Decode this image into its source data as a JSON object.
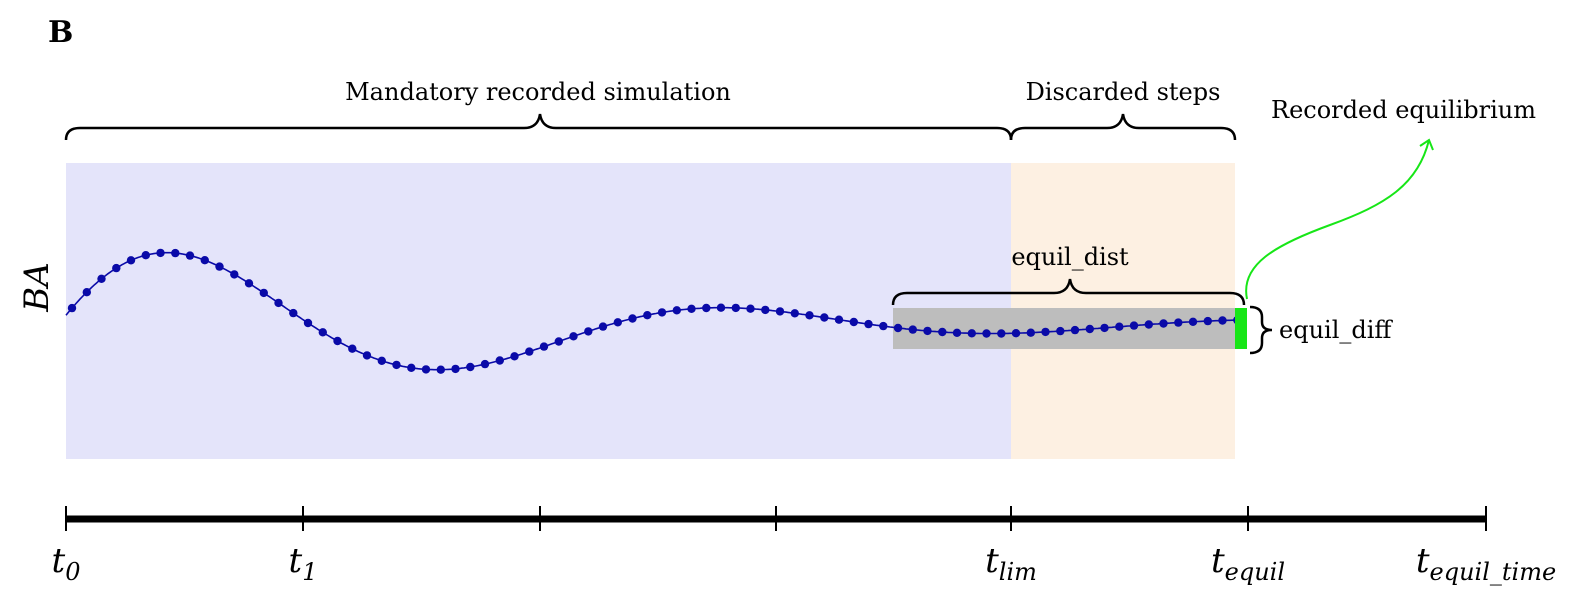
{
  "panel_label": "B",
  "y_axis_label": "BA",
  "regions": {
    "recorded_label": "Mandatory recorded simulation",
    "discarded_label": "Discarded steps",
    "equilibrium_label": "Recorded equilibrium"
  },
  "annotations": {
    "equil_dist": "equil_dist",
    "equil_diff": "equil_diff"
  },
  "time_axis": {
    "ticks": [
      {
        "base": "t",
        "sub": "0"
      },
      {
        "base": "t",
        "sub": "1"
      },
      {
        "base": "",
        "sub": ""
      },
      {
        "base": "",
        "sub": ""
      },
      {
        "base": "t",
        "sub": "lim"
      },
      {
        "base": "t",
        "sub": "equil"
      },
      {
        "base": "t",
        "sub": "equil_time"
      }
    ]
  },
  "colors": {
    "recorded_region": "#e4e4fa",
    "discarded_region": "#fdf0e2",
    "equil_band": "#bdbdbd",
    "series": "#0a0aa8",
    "equilibrium": "#17e617",
    "arrow": "#17e617"
  }
}
